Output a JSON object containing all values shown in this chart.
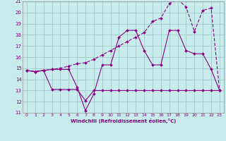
{
  "xlabel": "Windchill (Refroidissement éolien,°C)",
  "bg_color": "#c8ecec",
  "grid_color": "#a8cece",
  "line_color": "#880088",
  "xlim": [
    -0.5,
    23.5
  ],
  "ylim": [
    11,
    21
  ],
  "yticks": [
    11,
    12,
    13,
    14,
    15,
    16,
    17,
    18,
    19,
    20,
    21
  ],
  "xticks": [
    0,
    1,
    2,
    3,
    4,
    5,
    6,
    7,
    8,
    9,
    10,
    11,
    12,
    13,
    14,
    15,
    16,
    17,
    18,
    19,
    20,
    21,
    22,
    23
  ],
  "series1_x": [
    0,
    1,
    2,
    3,
    4,
    5,
    6,
    7,
    8,
    9,
    10,
    11,
    12,
    13,
    14,
    15,
    16,
    17,
    18,
    19,
    20,
    21,
    22,
    23
  ],
  "series1_y": [
    14.8,
    14.7,
    14.8,
    14.9,
    14.9,
    14.9,
    13.3,
    11.2,
    12.7,
    15.3,
    15.3,
    17.8,
    18.4,
    18.4,
    16.6,
    15.3,
    15.3,
    18.4,
    18.4,
    16.6,
    16.3,
    16.3,
    14.9,
    13.0
  ],
  "series2_x": [
    0,
    1,
    2,
    3,
    4,
    5,
    6,
    7,
    8,
    9,
    10,
    11,
    12,
    13,
    14,
    15,
    16,
    17,
    18,
    19,
    20,
    21,
    22,
    23
  ],
  "series2_y": [
    14.8,
    14.7,
    14.8,
    13.1,
    13.1,
    13.1,
    13.1,
    12.1,
    13.0,
    13.0,
    13.0,
    13.0,
    13.0,
    13.0,
    13.0,
    13.0,
    13.0,
    13.0,
    13.0,
    13.0,
    13.0,
    13.0,
    13.0,
    13.0
  ],
  "series3_x": [
    0,
    1,
    2,
    3,
    4,
    5,
    6,
    7,
    8,
    9,
    10,
    11,
    12,
    13,
    14,
    15,
    16,
    17,
    18,
    19,
    20,
    21,
    22,
    23
  ],
  "series3_y": [
    14.8,
    14.7,
    14.8,
    14.9,
    15.0,
    15.2,
    15.4,
    15.5,
    15.8,
    16.2,
    16.6,
    17.0,
    17.4,
    17.8,
    18.2,
    19.2,
    19.5,
    20.8,
    21.2,
    20.5,
    18.3,
    20.2,
    20.4,
    13.0
  ]
}
